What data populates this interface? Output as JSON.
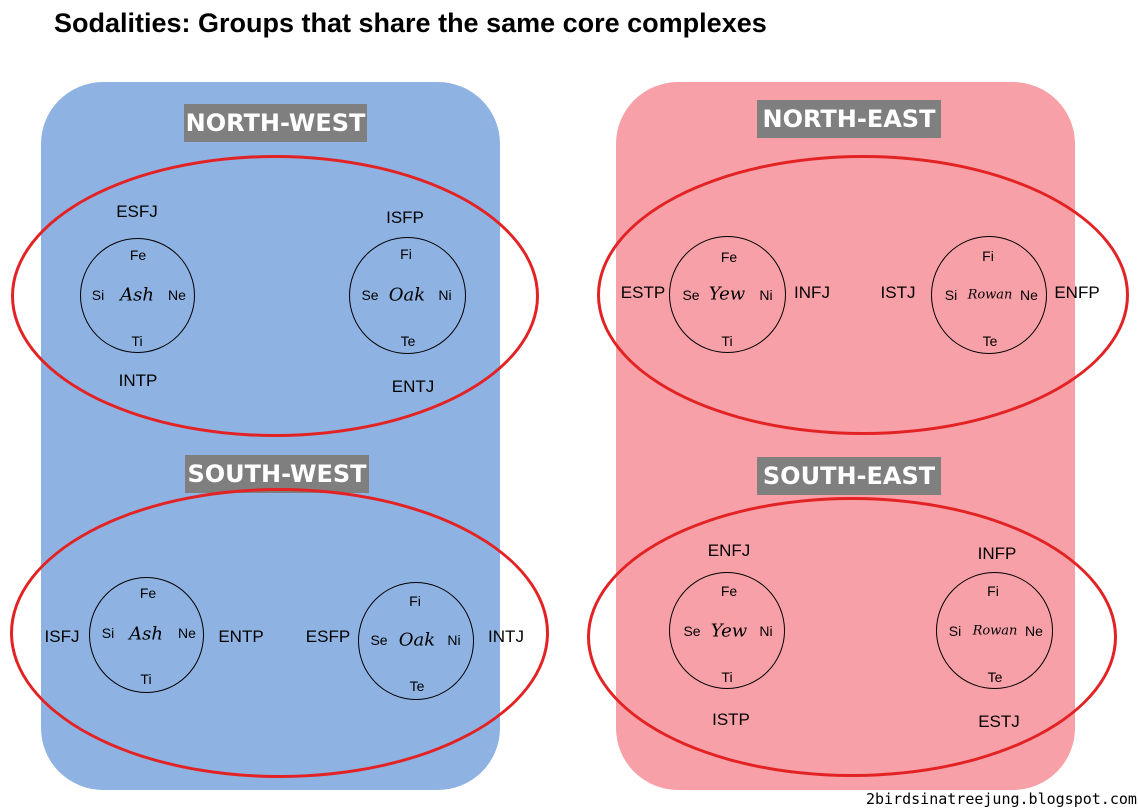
{
  "title": "Sodalities: Groups that share the same core complexes",
  "credit": "2birdsinatreejung.blogspot.com",
  "colors": {
    "west_panel": "#8EB3E2",
    "east_panel": "#F8A0A8",
    "label_bg": "#7F7F7F",
    "ellipse": "#E32224"
  },
  "groups": {
    "nw": {
      "label": "NORTH-WEST",
      "c1": {
        "top": "Fe",
        "left": "Si",
        "center": "Ash",
        "right": "Ne",
        "bottom": "Ti"
      },
      "c2": {
        "top": "Fi",
        "left": "Se",
        "center": "Oak",
        "right": "Ni",
        "bottom": "Te"
      },
      "types": [
        "ESFJ",
        "INTP",
        "ISFP",
        "ENTJ"
      ]
    },
    "ne": {
      "label": "NORTH-EAST",
      "c1": {
        "top": "Fe",
        "left": "Se",
        "center": "Yew",
        "right": "Ni",
        "bottom": "Ti"
      },
      "c2": {
        "top": "Fi",
        "left": "Si",
        "center": "Rowan",
        "right": "Ne",
        "bottom": "Te"
      },
      "types": [
        "ESTP",
        "INFJ",
        "ISTJ",
        "ENFP"
      ]
    },
    "sw": {
      "label": "SOUTH-WEST",
      "c1": {
        "top": "Fe",
        "left": "Si",
        "center": "Ash",
        "right": "Ne",
        "bottom": "Ti"
      },
      "c2": {
        "top": "Fi",
        "left": "Se",
        "center": "Oak",
        "right": "Ni",
        "bottom": "Te"
      },
      "types": [
        "ISFJ",
        "ENTP",
        "ESFP",
        "INTJ"
      ]
    },
    "se": {
      "label": "SOUTH-EAST",
      "c1": {
        "top": "Fe",
        "left": "Se",
        "center": "Yew",
        "right": "Ni",
        "bottom": "Ti"
      },
      "c2": {
        "top": "Fi",
        "left": "Si",
        "center": "Rowan",
        "right": "Ne",
        "bottom": "Te"
      },
      "types": [
        "ENFJ",
        "ISTP",
        "INFP",
        "ESTJ"
      ]
    }
  }
}
